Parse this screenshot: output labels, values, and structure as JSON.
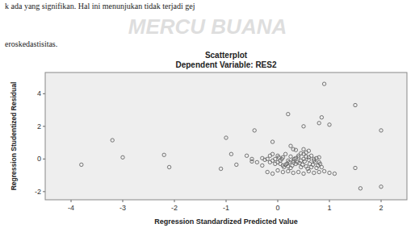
{
  "chart_data": {
    "type": "scatter",
    "title": "Scatterplot",
    "subtitle": "Dependent Variable: RES2",
    "x_label": "Regression Standardized Predicted Value",
    "y_label": "Regression Studentized Residual",
    "annotations": [
      "MERCU BUANA",
      "k  ada  yang  signifikan.  Hal  ini  menunjukan  tidak  terjadi  gej",
      "eroskedastisitas."
    ],
    "xlim": [
      -4.5,
      2.5
    ],
    "ylim": [
      -2.5,
      5.3
    ],
    "xticks": [
      -4,
      -3,
      -2,
      -1,
      0,
      1,
      2
    ],
    "yticks": [
      -2,
      0,
      2,
      4
    ],
    "color": "#666666",
    "marker": "circle",
    "grid": false,
    "x": [
      -3.8,
      -3.2,
      -3.0,
      -2.2,
      -2.1,
      -1.1,
      -0.9,
      -0.6,
      -0.5,
      -1.0,
      -0.45,
      -0.3,
      -0.25,
      -0.15,
      -0.1,
      -0.05,
      0.0,
      0.02,
      0.05,
      0.08,
      0.1,
      0.12,
      0.15,
      0.18,
      0.2,
      0.22,
      0.25,
      0.28,
      0.3,
      0.32,
      0.35,
      0.38,
      0.4,
      0.42,
      0.45,
      0.48,
      0.5,
      0.52,
      0.55,
      0.58,
      0.6,
      0.62,
      0.65,
      0.68,
      0.7,
      0.72,
      0.75,
      0.78,
      0.8,
      0.82,
      0.85,
      -0.5,
      -0.4,
      -0.3,
      -0.2,
      -0.15,
      -0.1,
      -0.05,
      0.0,
      0.05,
      0.1,
      0.15,
      0.2,
      0.25,
      0.3,
      0.35,
      0.4,
      0.45,
      0.5,
      0.55,
      0.6,
      0.65,
      0.7,
      0.75,
      0.8,
      0.2,
      0.5,
      0.8,
      0.85,
      0.9,
      1.0,
      1.5,
      2.0,
      -0.2,
      -0.1,
      0.0,
      0.1,
      0.2,
      0.3,
      0.4,
      0.5,
      0.6,
      0.7,
      0.8,
      0.9,
      1.0,
      1.1,
      1.5,
      1.6,
      2.0,
      -0.8,
      0.3,
      0.25,
      0.35,
      -0.1,
      0.5,
      0.6,
      0.45,
      0.55
    ],
    "values": [
      -0.35,
      1.15,
      0.1,
      0.25,
      -0.5,
      -0.6,
      0.3,
      0.2,
      -0.15,
      1.3,
      1.75,
      0.05,
      -0.05,
      0.2,
      -0.1,
      0.0,
      -0.2,
      0.1,
      -0.3,
      0.0,
      -0.4,
      -0.5,
      -0.35,
      -0.3,
      -0.45,
      -0.2,
      -0.55,
      -0.4,
      -0.1,
      0.0,
      -0.3,
      -0.2,
      0.1,
      -0.25,
      -0.5,
      -0.35,
      0.3,
      -0.15,
      -0.45,
      -0.6,
      0.1,
      -0.3,
      -0.5,
      -0.35,
      0.0,
      -0.2,
      -0.55,
      -0.4,
      0.1,
      -0.3,
      -0.5,
      0.0,
      -0.2,
      -0.4,
      0.0,
      -0.2,
      0.3,
      -0.3,
      0.2,
      -0.1,
      0.1,
      0.3,
      -0.1,
      0.15,
      -0.2,
      0.05,
      0.2,
      -0.1,
      0.0,
      0.15,
      -0.05,
      0.2,
      -0.1,
      0.05,
      -0.2,
      2.75,
      2.0,
      2.2,
      2.55,
      4.6,
      2.1,
      3.3,
      1.75,
      -0.8,
      -0.9,
      -0.7,
      -0.8,
      -0.75,
      -0.85,
      -0.8,
      -0.9,
      -0.75,
      -0.85,
      -0.8,
      -0.75,
      -0.85,
      -0.9,
      -0.55,
      -1.8,
      -1.7,
      -0.35,
      0.6,
      0.8,
      0.55,
      1.05,
      0.6,
      0.5,
      0.35,
      0.4
    ]
  }
}
